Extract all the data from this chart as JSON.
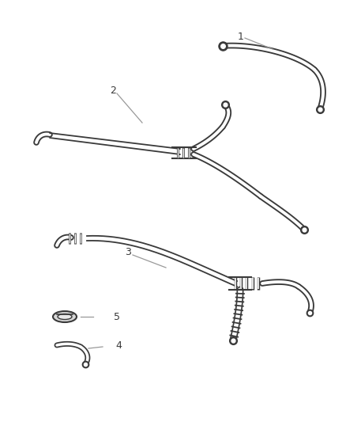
{
  "bg_color": "#ffffff",
  "line_color": "#3a3a3a",
  "label_color": "#3a3a3a",
  "callout_line_color": "#999999",
  "lw_outer": 5.5,
  "lw_inner": 2.8,
  "lw_thin": 1.2
}
